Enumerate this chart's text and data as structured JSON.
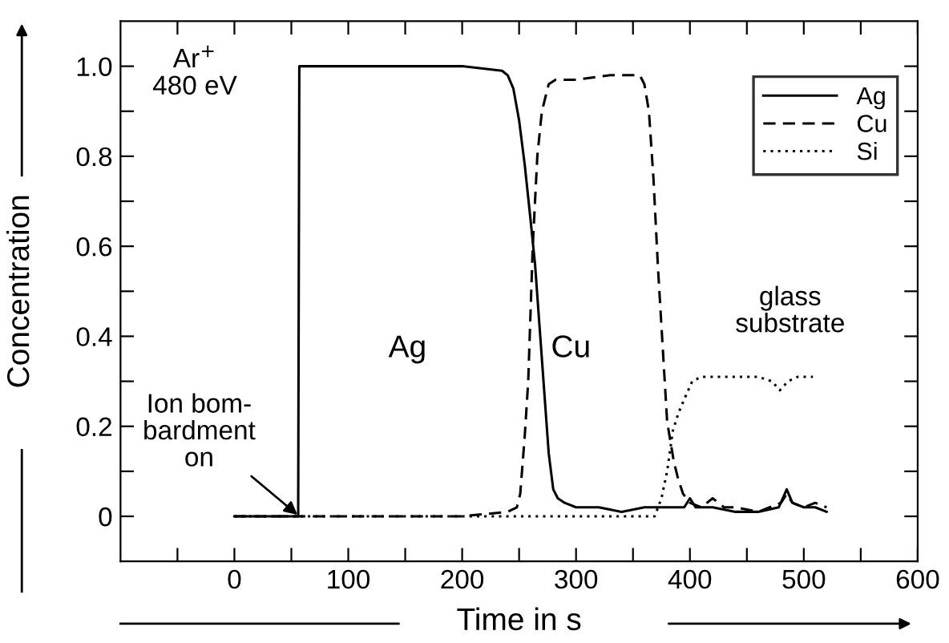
{
  "chart_data": {
    "type": "line",
    "xlabel": "Time in s",
    "ylabel": "Concentration",
    "xlim": [
      -100,
      600
    ],
    "ylim": [
      -0.1,
      1.1
    ],
    "xticks": [
      {
        "value": -50,
        "label": null
      },
      0,
      {
        "value": 50,
        "label": null
      },
      100,
      {
        "value": 150,
        "label": null
      },
      200,
      {
        "value": 250,
        "label": null
      },
      300,
      {
        "value": 350,
        "label": null
      },
      400,
      {
        "value": 450,
        "label": null
      },
      500,
      {
        "value": 550,
        "label": null
      },
      600
    ],
    "yticks": [
      0,
      {
        "value": 0.1,
        "label": null
      },
      0.2,
      {
        "value": 0.3,
        "label": null
      },
      0.4,
      {
        "value": 0.5,
        "label": null
      },
      0.6,
      {
        "value": 0.7,
        "label": null
      },
      0.8,
      {
        "value": 0.9,
        "label": null
      },
      {
        "value": 1.0,
        "label": "1.0"
      }
    ],
    "legend": "top right",
    "grid": false,
    "series": [
      {
        "name": "Ag",
        "color": "#000000",
        "line_style": "solid",
        "x": [
          0,
          56,
          57,
          60,
          100,
          200,
          235,
          240,
          245,
          250,
          255,
          260,
          264,
          268,
          272,
          276,
          280,
          284,
          290,
          300,
          320,
          340,
          360,
          380,
          395,
          400,
          405,
          420,
          440,
          460,
          478,
          485,
          490,
          500,
          510,
          520
        ],
        "values": [
          0,
          0,
          1.0,
          1.0,
          1.0,
          1.0,
          0.99,
          0.98,
          0.95,
          0.88,
          0.78,
          0.66,
          0.56,
          0.42,
          0.28,
          0.14,
          0.06,
          0.04,
          0.03,
          0.02,
          0.02,
          0.01,
          0.02,
          0.02,
          0.02,
          0.04,
          0.02,
          0.02,
          0.01,
          0.01,
          0.02,
          0.06,
          0.03,
          0.02,
          0.02,
          0.01
        ]
      },
      {
        "name": "Cu",
        "color": "#000000",
        "line_style": "dashed",
        "x": [
          0,
          100,
          200,
          240,
          248,
          251,
          255,
          258,
          262,
          266,
          270,
          276,
          282,
          300,
          330,
          356,
          360,
          364,
          368,
          372,
          376,
          380,
          386,
          390,
          394,
          400,
          410,
          420,
          430,
          440,
          460,
          480,
          485,
          490,
          500,
          510,
          520
        ],
        "values": [
          0,
          0,
          0,
          0.01,
          0.02,
          0.05,
          0.18,
          0.3,
          0.6,
          0.8,
          0.9,
          0.96,
          0.97,
          0.97,
          0.98,
          0.98,
          0.96,
          0.9,
          0.75,
          0.55,
          0.38,
          0.21,
          0.12,
          0.08,
          0.05,
          0.03,
          0.02,
          0.04,
          0.02,
          0.02,
          0.01,
          0.03,
          0.05,
          0.03,
          0.02,
          0.03,
          0.02
        ]
      },
      {
        "name": "Si",
        "color": "#000000",
        "line_style": "dotted",
        "x": [
          0,
          100,
          200,
          300,
          369,
          375,
          380,
          385,
          390,
          395,
          402,
          410,
          430,
          460,
          472,
          479,
          486,
          495,
          508
        ],
        "values": [
          0,
          0,
          0,
          0,
          0,
          0.04,
          0.1,
          0.19,
          0.23,
          0.26,
          0.3,
          0.31,
          0.31,
          0.31,
          0.3,
          0.28,
          0.3,
          0.31,
          0.31
        ]
      }
    ],
    "annotations": [
      "Ar$^{+}$\n480 eV",
      "Ag",
      "Cu",
      "glass\nsubstrate",
      {
        "text": "Ion bom-\nbardment\non",
        "x": 57,
        "y": 0
      }
    ]
  }
}
